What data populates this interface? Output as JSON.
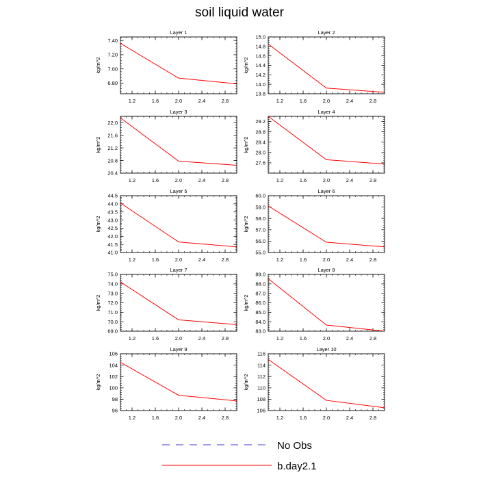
{
  "title": "soil liquid water",
  "legend": [
    {
      "label": "No Obs",
      "color": "#3b3bd9",
      "dash": "dashed"
    },
    {
      "label": "b.day2.1",
      "color": "#ff0000",
      "dash": "solid"
    }
  ],
  "chart_data": [
    {
      "type": "line",
      "title": "Layer 1",
      "ylabel": "kg/m^2",
      "xlim": [
        1,
        3
      ],
      "ylim": [
        6.65,
        7.45
      ],
      "xticks": [
        "1.2",
        "1.6",
        "2.0",
        "2.4",
        "2.8"
      ],
      "yticks": [
        "6.80",
        "7.00",
        "7.20",
        "7.40"
      ],
      "series": [
        {
          "name": "b.day2.1",
          "x": [
            1,
            2,
            3
          ],
          "y": [
            7.36,
            6.87,
            6.79
          ]
        }
      ]
    },
    {
      "type": "line",
      "title": "Layer 2",
      "ylabel": "kg/m^2",
      "xlim": [
        1,
        3
      ],
      "ylim": [
        13.8,
        15.0
      ],
      "xticks": [
        "1.2",
        "1.6",
        "2.0",
        "2.4",
        "2.8"
      ],
      "yticks": [
        "13.8",
        "14.0",
        "14.2",
        "14.4",
        "14.6",
        "14.8",
        "15.0"
      ],
      "series": [
        {
          "name": "b.day2.1",
          "x": [
            1,
            2,
            3
          ],
          "y": [
            14.85,
            13.92,
            13.83
          ]
        }
      ]
    },
    {
      "type": "line",
      "title": "Layer 3",
      "ylabel": "kg/m^2",
      "xlim": [
        1,
        3
      ],
      "ylim": [
        20.4,
        22.2
      ],
      "xticks": [
        "1.2",
        "1.6",
        "2.0",
        "2.4",
        "2.8"
      ],
      "yticks": [
        "20.4",
        "20.8",
        "21.2",
        "21.6",
        "22.0"
      ],
      "series": [
        {
          "name": "b.day2.1",
          "x": [
            1,
            2,
            3
          ],
          "y": [
            22.15,
            20.78,
            20.65
          ]
        }
      ]
    },
    {
      "type": "line",
      "title": "Layer 4",
      "ylabel": "kg/m^2",
      "xlim": [
        1,
        3
      ],
      "ylim": [
        27.2,
        29.4
      ],
      "xticks": [
        "1.2",
        "1.6",
        "2.0",
        "2.4",
        "2.8"
      ],
      "yticks": [
        "27.6",
        "28.0",
        "28.4",
        "28.8",
        "29.2"
      ],
      "series": [
        {
          "name": "b.day2.1",
          "x": [
            1,
            2,
            3
          ],
          "y": [
            29.4,
            27.72,
            27.55
          ]
        }
      ]
    },
    {
      "type": "line",
      "title": "Layer 5",
      "ylabel": "kg/m^2",
      "xlim": [
        1,
        3
      ],
      "ylim": [
        41.0,
        44.5
      ],
      "xticks": [
        "1.2",
        "1.6",
        "2.0",
        "2.4",
        "2.8"
      ],
      "yticks": [
        "41.0",
        "41.5",
        "42.0",
        "42.5",
        "43.0",
        "43.5",
        "44.0",
        "44.5"
      ],
      "series": [
        {
          "name": "b.day2.1",
          "x": [
            1,
            2,
            3
          ],
          "y": [
            44.05,
            41.65,
            41.35
          ]
        }
      ]
    },
    {
      "type": "line",
      "title": "Layer 6",
      "ylabel": "kg/m^2",
      "xlim": [
        1,
        3
      ],
      "ylim": [
        55.0,
        60.0
      ],
      "xticks": [
        "1.2",
        "1.6",
        "2.0",
        "2.4",
        "2.8"
      ],
      "yticks": [
        "55.0",
        "56.0",
        "57.0",
        "58.0",
        "59.0",
        "60.0"
      ],
      "series": [
        {
          "name": "b.day2.1",
          "x": [
            1,
            2,
            3
          ],
          "y": [
            59.1,
            55.9,
            55.5
          ]
        }
      ]
    },
    {
      "type": "line",
      "title": "Layer 7",
      "ylabel": "kg/m^2",
      "xlim": [
        1,
        3
      ],
      "ylim": [
        69.0,
        75.0
      ],
      "xticks": [
        "1.2",
        "1.6",
        "2.0",
        "2.4",
        "2.8"
      ],
      "yticks": [
        "69.0",
        "70.0",
        "71.0",
        "72.0",
        "73.0",
        "74.0",
        "75.0"
      ],
      "series": [
        {
          "name": "b.day2.1",
          "x": [
            1,
            2,
            3
          ],
          "y": [
            74.2,
            70.2,
            69.7
          ]
        }
      ]
    },
    {
      "type": "line",
      "title": "Layer 8",
      "ylabel": "kg/m^2",
      "xlim": [
        1,
        3
      ],
      "ylim": [
        83.0,
        89.0
      ],
      "xticks": [
        "1.2",
        "1.6",
        "2.0",
        "2.4",
        "2.8"
      ],
      "yticks": [
        "83.0",
        "84.0",
        "85.0",
        "86.0",
        "87.0",
        "88.0",
        "89.0"
      ],
      "series": [
        {
          "name": "b.day2.1",
          "x": [
            1,
            2,
            3
          ],
          "y": [
            88.55,
            83.65,
            83.0
          ]
        }
      ]
    },
    {
      "type": "line",
      "title": "Layer 9",
      "ylabel": "kg/m^2",
      "xlim": [
        1,
        3
      ],
      "ylim": [
        96,
        106
      ],
      "xticks": [
        "1.2",
        "1.6",
        "2.0",
        "2.4",
        "2.8"
      ],
      "yticks": [
        "96",
        "98",
        "100",
        "102",
        "104",
        "106"
      ],
      "series": [
        {
          "name": "b.day2.1",
          "x": [
            1,
            2,
            3
          ],
          "y": [
            104.5,
            98.7,
            97.7
          ]
        }
      ]
    },
    {
      "type": "line",
      "title": "Layer 10",
      "ylabel": "kg/m^2",
      "xlim": [
        1,
        3
      ],
      "ylim": [
        106,
        116
      ],
      "xticks": [
        "1.2",
        "1.6",
        "2.0",
        "2.4",
        "2.8"
      ],
      "yticks": [
        "106",
        "108",
        "110",
        "112",
        "114",
        "116"
      ],
      "series": [
        {
          "name": "b.day2.1",
          "x": [
            1,
            2,
            3
          ],
          "y": [
            115.0,
            107.8,
            106.5
          ]
        }
      ]
    }
  ]
}
